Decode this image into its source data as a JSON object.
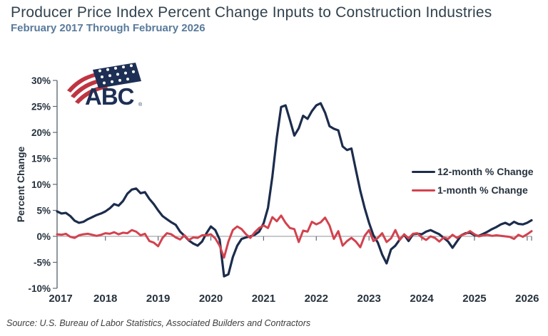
{
  "header": {
    "title": "Producer Price Index Percent Change Inputs to Construction Industries",
    "subtitle": "February 2017 Through February 2026"
  },
  "logo": {
    "text": "ABC",
    "reg": "®",
    "navy": "#1d2f54",
    "red": "#bf3441"
  },
  "source": "Source: U.S. Bureau of Labor Statistics, Associated Builders and Contractors",
  "chart_data": {
    "type": "line",
    "title": "Producer Price Index Percent Change Inputs to Construction Industries",
    "subtitle": "February 2017 Through February 2026",
    "ylabel": "Percent Change",
    "ylim": [
      -10,
      30
    ],
    "y_ticks": [
      30,
      25,
      20,
      15,
      10,
      5,
      0,
      -5,
      -10
    ],
    "y_tick_labels": [
      "30%",
      "25%",
      "20%",
      "15%",
      "10%",
      "5%",
      "0%",
      "-5%",
      "-10%"
    ],
    "x_start": "2017-02",
    "x_end": "2026-02",
    "frequency": "monthly",
    "x_tick_labels": [
      "2017",
      "2018",
      "2019",
      "2020",
      "2021",
      "2022",
      "2023",
      "2024",
      "2025",
      "2026"
    ],
    "grid": "zero-baseline-only",
    "legend_position": "middle-right",
    "axis_color": "#5f6b76",
    "zero_line_color": "#a6a9ad",
    "series": [
      {
        "name": "12-month % Change",
        "color": "#1c2c4c",
        "values": [
          4.8,
          4.4,
          4.5,
          3.9,
          3.0,
          2.6,
          2.8,
          3.3,
          3.7,
          4.1,
          4.4,
          4.8,
          5.4,
          6.2,
          5.9,
          6.8,
          8.2,
          9.0,
          9.2,
          8.3,
          8.5,
          7.2,
          6.2,
          5.0,
          3.9,
          3.3,
          2.7,
          2.2,
          0.9,
          0.1,
          -0.8,
          -1.4,
          -1.8,
          -1.0,
          0.6,
          1.9,
          1.2,
          -0.6,
          -7.7,
          -7.3,
          -4.0,
          -1.8,
          -0.5,
          -0.2,
          0.0,
          0.3,
          0.9,
          2.5,
          5.5,
          11.5,
          19.0,
          24.9,
          25.2,
          22.4,
          19.4,
          20.8,
          23.2,
          22.6,
          24.1,
          25.2,
          25.6,
          23.8,
          21.2,
          20.7,
          20.4,
          17.3,
          16.6,
          16.9,
          12.8,
          8.8,
          5.5,
          2.6,
          0.2,
          -1.2,
          -3.5,
          -5.2,
          -2.5,
          -1.8,
          -0.6,
          0.3,
          -0.9,
          0.4,
          0.5,
          0.4,
          0.9,
          1.2,
          0.8,
          0.4,
          -0.3,
          -1.0,
          -2.2,
          -1.0,
          0.2,
          0.6,
          0.7,
          0.2,
          0.1,
          0.5,
          0.9,
          1.4,
          1.8,
          2.3,
          2.6,
          2.2,
          2.8,
          2.4,
          2.3,
          2.6,
          3.1
        ]
      },
      {
        "name": "1-month % Change",
        "color": "#d2424e",
        "values": [
          0.4,
          0.3,
          0.5,
          -0.1,
          -0.3,
          0.2,
          0.4,
          0.5,
          0.3,
          0.1,
          0.3,
          0.6,
          0.5,
          0.8,
          0.4,
          0.7,
          0.6,
          1.2,
          0.9,
          0.2,
          0.5,
          -0.9,
          -1.2,
          -1.9,
          -0.3,
          0.6,
          0.4,
          -0.2,
          -0.6,
          0.2,
          -0.7,
          -0.2,
          -0.3,
          0.2,
          0.2,
          0.4,
          -0.4,
          -1.8,
          -4.1,
          -1.0,
          1.2,
          1.9,
          1.4,
          0.4,
          -0.3,
          0.8,
          1.6,
          2.1,
          1.6,
          3.7,
          2.9,
          4.0,
          2.6,
          1.6,
          1.4,
          -1.1,
          1.1,
          0.9,
          2.8,
          2.3,
          2.7,
          3.6,
          2.1,
          -0.5,
          1.0,
          -1.8,
          -0.9,
          -0.3,
          -1.0,
          -2.1,
          0.1,
          1.2,
          -0.9,
          -0.3,
          0.6,
          -1.1,
          -0.4,
          1.2,
          -0.7,
          0.4,
          -0.4,
          0.5,
          0.6,
          -0.2,
          -0.7,
          0.0,
          -0.3,
          -1.0,
          -0.2,
          -0.5,
          0.3,
          -0.3,
          0.2,
          0.5,
          1.0,
          0.4,
          0.0,
          0.2,
          0.3,
          0.1,
          0.2,
          0.1,
          0.0,
          -0.1,
          -0.5,
          0.3,
          -0.1,
          0.4,
          1.0
        ]
      }
    ]
  }
}
